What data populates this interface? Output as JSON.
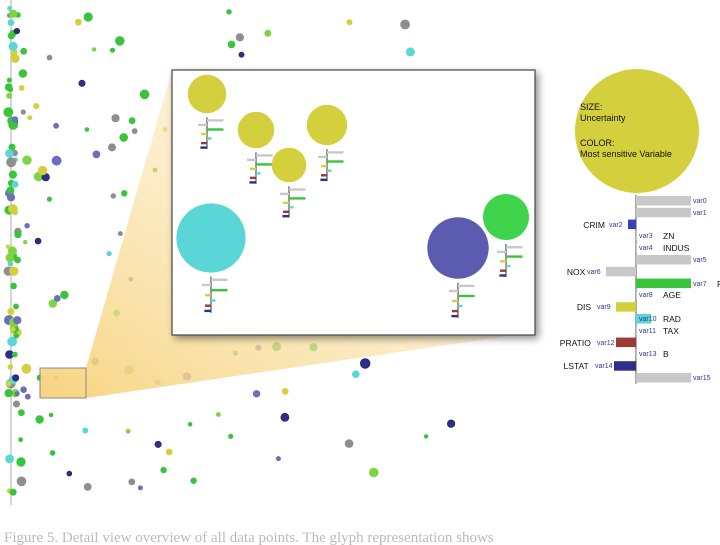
{
  "chart_data": {
    "type": "scatter",
    "title": "",
    "xlabel": "",
    "ylabel": "",
    "grid": false,
    "legend": {
      "size_title": "SIZE:",
      "size_value": "Uncertainty",
      "color_title": "COLOR:",
      "color_value": "Most sensitive Variable",
      "bubble_color": "#d4cf3c"
    },
    "variables": [
      {
        "id": "var0",
        "name": "",
        "color": "#c8c8c8",
        "value": 0.55
      },
      {
        "id": "var1",
        "name": "",
        "color": "#c8c8c8",
        "value": 0.55
      },
      {
        "id": "var2",
        "name": "CRIM",
        "color": "#3b3fb8",
        "value": -0.08
      },
      {
        "id": "var3",
        "name": "ZN",
        "color": "#c8c8c8",
        "value": 0.0
      },
      {
        "id": "var4",
        "name": "INDUS",
        "color": "#c8c8c8",
        "value": 0.0
      },
      {
        "id": "var5",
        "name": "",
        "color": "#c8c8c8",
        "value": 0.55
      },
      {
        "id": "var6",
        "name": "NOX",
        "color": "#c8c8c8",
        "value": -0.3
      },
      {
        "id": "var7",
        "name": "RM",
        "color": "#39c43c",
        "value": 0.55
      },
      {
        "id": "var8",
        "name": "AGE",
        "color": "#c8c8c8",
        "value": 0.0
      },
      {
        "id": "var9",
        "name": "DIS",
        "color": "#d4cf3c",
        "value": -0.2
      },
      {
        "id": "var10",
        "name": "RAD",
        "color": "#5ad6d6",
        "value": 0.15
      },
      {
        "id": "var11",
        "name": "TAX",
        "color": "#c8c8c8",
        "value": 0.0
      },
      {
        "id": "var12",
        "name": "PRATIO",
        "color": "#9b3a36",
        "value": -0.2
      },
      {
        "id": "var13",
        "name": "B",
        "color": "#c8c8c8",
        "value": 0.0
      },
      {
        "id": "var14",
        "name": "LSTAT",
        "color": "#2d2f88",
        "value": -0.22
      },
      {
        "id": "var15",
        "name": "",
        "color": "#c8c8c8",
        "value": 0.55
      }
    ],
    "zoom_glyphs": [
      {
        "color": "#d4cf3c",
        "uncertainty": 0.4
      },
      {
        "color": "#d4cf3c",
        "uncertainty": 0.38
      },
      {
        "color": "#d4cf3c",
        "uncertainty": 0.36
      },
      {
        "color": "#d4cf3c",
        "uncertainty": 0.42
      },
      {
        "color": "#5ad6d6",
        "uncertainty": 0.72
      },
      {
        "color": "#5b5bb0",
        "uncertainty": 0.64
      },
      {
        "color": "#3fd44c",
        "uncertainty": 0.48
      }
    ]
  },
  "caption": "Figure 5. Detail view overview of all data points. The glyph representation shows"
}
